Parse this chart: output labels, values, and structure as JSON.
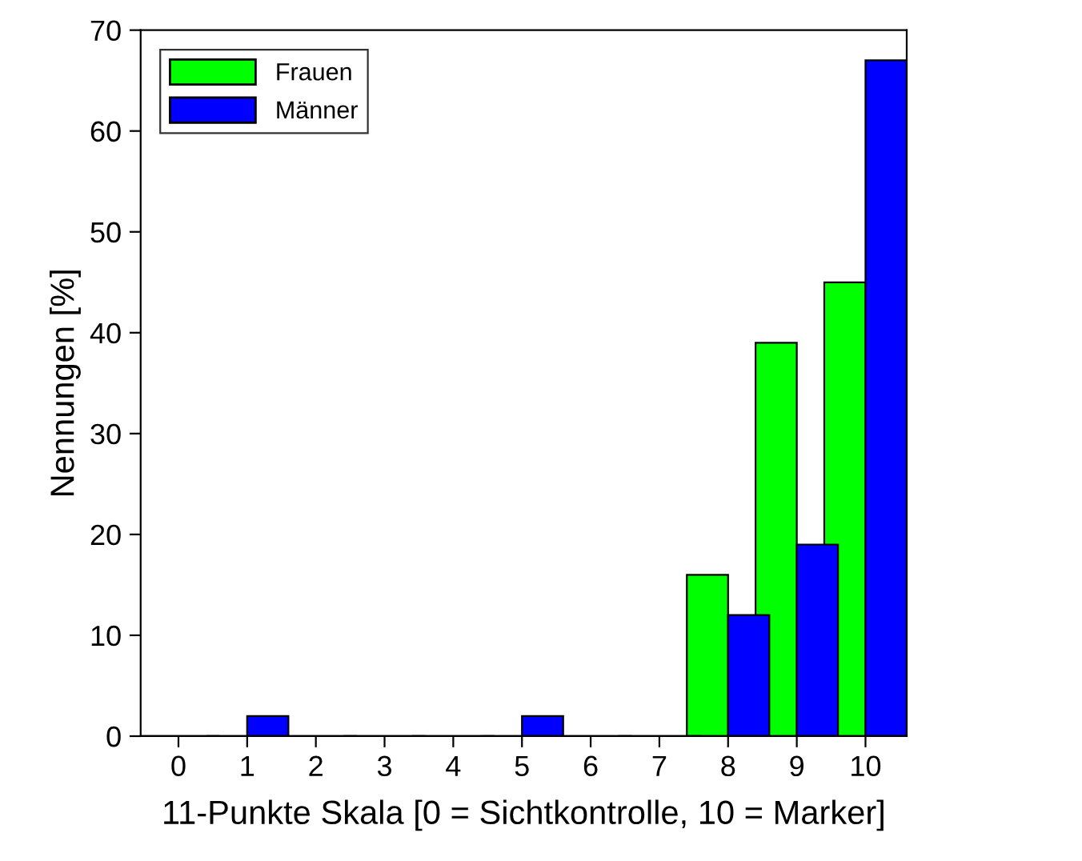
{
  "chart_data": {
    "type": "bar",
    "xlabel": "11-Punkte Skala [0 = Sichtkontrolle, 10 = Marker]",
    "ylabel": "Nennungen [%]",
    "categories": [
      "0",
      "1",
      "2",
      "3",
      "4",
      "5",
      "6",
      "7",
      "8",
      "9",
      "10"
    ],
    "series": [
      {
        "name": "Frauen",
        "color": "#00ff00",
        "values": [
          0,
          0,
          0,
          0,
          0,
          0,
          0,
          0,
          16,
          39,
          45
        ]
      },
      {
        "name": "Männer",
        "color": "#0000ff",
        "values": [
          0,
          2,
          0,
          0,
          0,
          2,
          0,
          0,
          12,
          19,
          67
        ]
      }
    ],
    "ylim": [
      0,
      70
    ],
    "yticks": [
      0,
      10,
      20,
      30,
      40,
      50,
      60,
      70
    ],
    "grid": false,
    "legend": "top left"
  }
}
